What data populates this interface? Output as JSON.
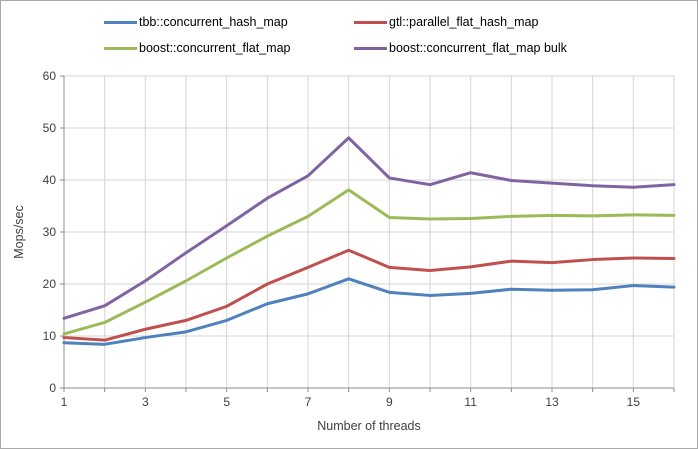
{
  "window": {
    "background": "#ffffff",
    "border_color": "#a9a9a9"
  },
  "chart_data": {
    "type": "line",
    "title": "",
    "xlabel": "Number of threads",
    "ylabel": "Mops/sec",
    "x": [
      1,
      2,
      3,
      4,
      5,
      6,
      7,
      8,
      9,
      10,
      11,
      12,
      13,
      14,
      15,
      16
    ],
    "xlim": [
      1,
      16
    ],
    "ylim": [
      0,
      60
    ],
    "xtick_labels": [
      "1",
      "3",
      "5",
      "7",
      "9",
      "11",
      "13",
      "15"
    ],
    "xtick_label_positions": [
      1,
      3,
      5,
      7,
      9,
      11,
      13,
      15
    ],
    "ytick_labels": [
      "0",
      "10",
      "20",
      "30",
      "40",
      "50",
      "60"
    ],
    "ytick_values": [
      0,
      10,
      20,
      30,
      40,
      50,
      60
    ],
    "grid": true,
    "legend_position": "top",
    "series": [
      {
        "name": "tbb::concurrent_hash_map",
        "color": "#4F81BD",
        "values": [
          8.7,
          8.4,
          9.7,
          10.8,
          13.0,
          16.2,
          18.1,
          21.0,
          18.4,
          17.8,
          18.2,
          19.0,
          18.8,
          18.9,
          19.7,
          19.4
        ]
      },
      {
        "name": "gtl::parallel_flat_hash_map",
        "color": "#C0504D",
        "values": [
          9.7,
          9.2,
          11.3,
          13.0,
          15.7,
          20.0,
          23.2,
          26.5,
          23.2,
          22.6,
          23.3,
          24.4,
          24.1,
          24.7,
          25.0,
          24.9
        ]
      },
      {
        "name": "boost::concurrent_flat_map",
        "color": "#9BBB59",
        "values": [
          10.4,
          12.6,
          16.5,
          20.6,
          25.0,
          29.2,
          33.0,
          38.1,
          32.8,
          32.5,
          32.6,
          33.0,
          33.2,
          33.1,
          33.3,
          33.2
        ]
      },
      {
        "name": "boost::concurrent_flat_map bulk",
        "color": "#8064A2",
        "values": [
          13.4,
          15.8,
          20.6,
          26.0,
          31.2,
          36.5,
          40.8,
          48.1,
          40.4,
          39.1,
          41.4,
          39.9,
          39.4,
          38.9,
          38.6,
          39.1
        ]
      }
    ],
    "styles": {
      "gridline_color": "#d4d4d4",
      "axis_color": "#8c8c8c",
      "text_color": "#3f3f3f",
      "line_width": 3,
      "tick_font_size": 12,
      "axis_title_font_size": 12.5
    }
  }
}
